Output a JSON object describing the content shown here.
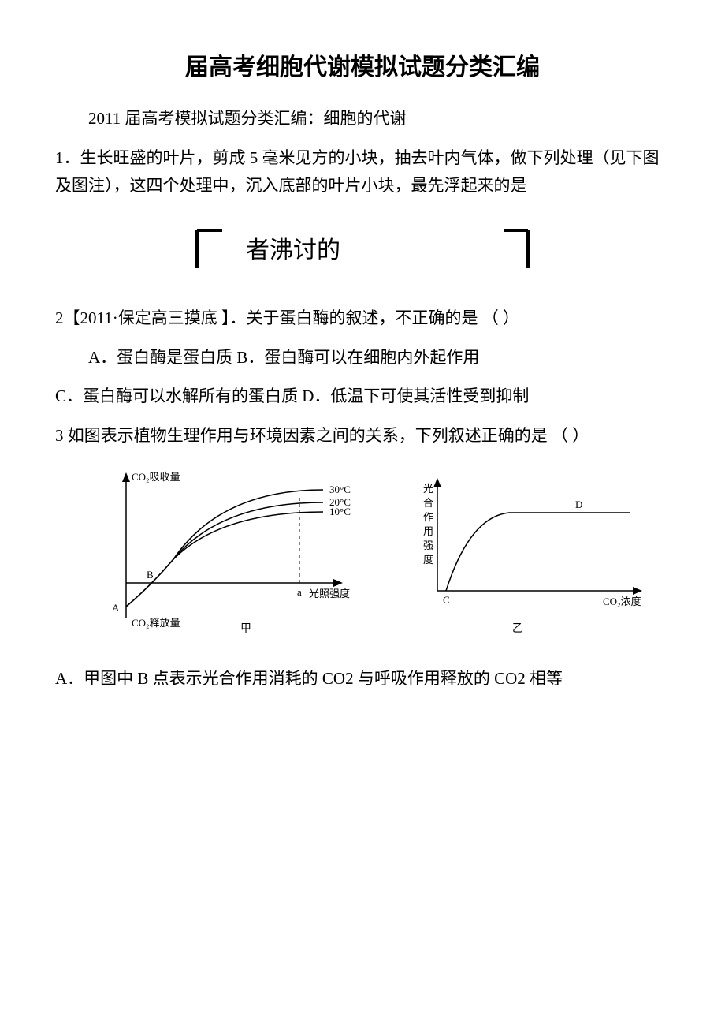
{
  "title": "届高考细胞代谢模拟试题分类汇编",
  "subtitle": "2011 届高考模拟试题分类汇编：细胞的代谢",
  "q1": "1．生长旺盛的叶片，剪成 5 毫米见方的小块，抽去叶内气体，做下列处理（见下图及图注），这四个处理中，沉入底部的叶片小块，最先浮起来的是",
  "fig1_text": "者沸讨的",
  "q2": "2【2011·保定高三摸底 】．关于蛋白酶的叙述，不正确的是 （  ）",
  "q2_opt1": "A．蛋白酶是蛋白质  B．蛋白酶可以在细胞内外起作用",
  "q2_opt2": "C．蛋白酶可以水解所有的蛋白质  D．低温下可使其活性受到抑制",
  "q3": "3 如图表示植物生理作用与环境因素之间的关系，下列叙述正确的是   （  ）",
  "q3_optA": "A．甲图中 B 点表示光合作用消耗的 CO2 与呼吸作用释放的 CO2 相等",
  "chart_left": {
    "y_label_top": "CO₂吸收量",
    "y_label_bot": "CO₂释放量",
    "x_label": "光照强度",
    "series": [
      "30°C",
      "20°C",
      "10°C"
    ],
    "point_A": "A",
    "point_B": "B",
    "point_a": "a",
    "caption": "甲",
    "axis_color": "#000000",
    "curve_color": "#000000",
    "text_fontsize": 13,
    "caption_fontsize": 14,
    "curves": [
      {
        "label": "30°C",
        "y_end": 118
      },
      {
        "label": "20°C",
        "y_end": 102
      },
      {
        "label": "10°C",
        "y_end": 90
      }
    ],
    "y_origin": 150,
    "x_origin": 30,
    "x_intercept": 60,
    "a_x": 250,
    "A_y": 180
  },
  "chart_right": {
    "y_label": "光合作用强度",
    "x_label": "CO₂浓度",
    "point_C": "C",
    "point_D": "D",
    "caption": "乙",
    "axis_color": "#000000",
    "curve_color": "#000000",
    "text_fontsize": 13,
    "caption_fontsize": 14,
    "plateau_y": 55,
    "D_x": 200,
    "C_x": 36
  }
}
